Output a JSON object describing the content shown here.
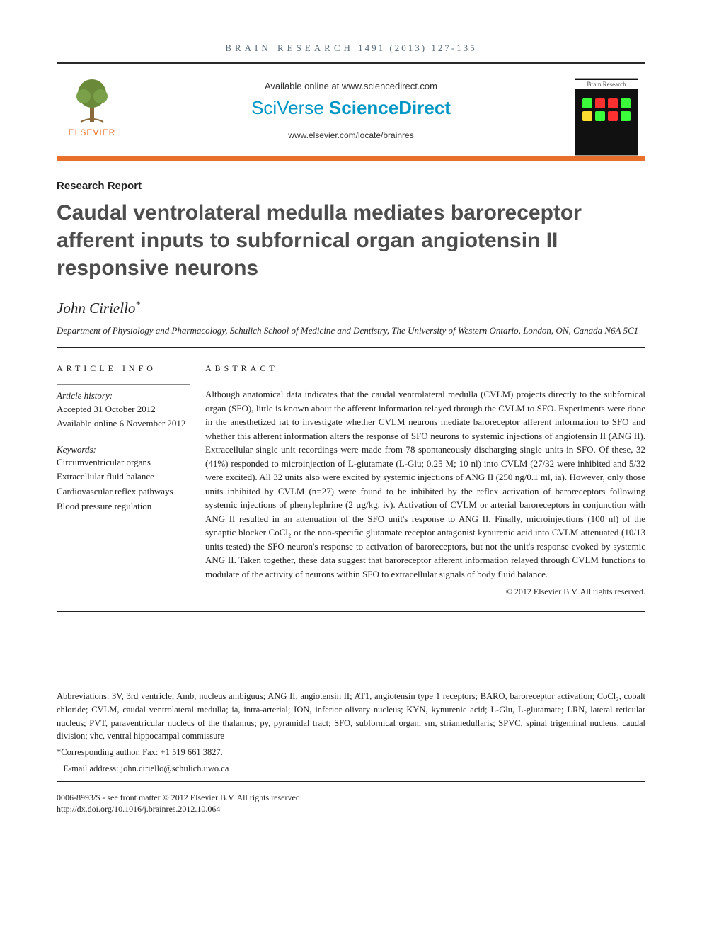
{
  "running_head": {
    "journal": "BRAIN RESEARCH",
    "issue": "1491 (2013) 127-135"
  },
  "banner": {
    "available_line": "Available online at www.sciencedirect.com",
    "brand_sv": "SciVerse ",
    "brand_sd": "ScienceDirect",
    "journal_link": "www.elsevier.com/locate/brainres",
    "elsevier_label": "ELSEVIER",
    "cover_head": "Brain Research",
    "brand_color": "#0097c4",
    "elsevier_color": "#e8702a",
    "cover_dot_colors": [
      "#3cff3c",
      "#ff3030",
      "#ff3030",
      "#3cff3c",
      "#ffdd30",
      "#3cff3c",
      "#ff3030",
      "#3cff3c"
    ]
  },
  "article_type": "Research Report",
  "title": "Caudal ventrolateral medulla mediates baroreceptor afferent inputs to subfornical organ angiotensin II responsive neurons",
  "author": "John Ciriello",
  "author_mark": "*",
  "affiliation": "Department of Physiology and Pharmacology, Schulich School of Medicine and Dentistry, The University of Western Ontario, London, ON, Canada N6A 5C1",
  "headings": {
    "info": "ARTICLE INFO",
    "abstract": "ABSTRACT"
  },
  "history": {
    "label": "Article history:",
    "accepted": "Accepted 31 October 2012",
    "online": "Available online 6 November 2012"
  },
  "keywords": {
    "label": "Keywords:",
    "items": [
      "Circumventricular organs",
      "Extracellular fluid balance",
      "Cardiovascular reflex pathways",
      "Blood pressure regulation"
    ]
  },
  "abstract": "Although anatomical data indicates that the caudal ventrolateral medulla (CVLM) projects directly to the subfornical organ (SFO), little is known about the afferent information relayed through the CVLM to SFO. Experiments were done in the anesthetized rat to investigate whether CVLM neurons mediate baroreceptor afferent information to SFO and whether this afferent information alters the response of SFO neurons to systemic injections of angiotensin II (ANG II). Extracellular single unit recordings were made from 78 spontaneously discharging single units in SFO. Of these, 32 (41%) responded to microinjection of L-glutamate (L-Glu; 0.25 M; 10 nl) into CVLM (27/32 were inhibited and 5/32 were excited). All 32 units also were excited by systemic injections of ANG II (250 ng/0.1 ml, ia). However, only those units inhibited by CVLM (n=27) were found to be inhibited by the reflex activation of baroreceptors following systemic injections of phenylephrine (2 µg/kg, iv). Activation of CVLM or arterial baroreceptors in conjunction with ANG II resulted in an attenuation of the SFO unit's response to ANG II. Finally, microinjections (100 nl) of the synaptic blocker CoCl₂ or the non-specific glutamate receptor antagonist kynurenic acid into CVLM attenuated (10/13 units tested) the SFO neuron's response to activation of baroreceptors, but not the unit's response evoked by systemic ANG II. Taken together, these data suggest that baroreceptor afferent information relayed through CVLM functions to modulate of the activity of neurons within SFO to extracellular signals of body fluid balance.",
  "copyright": "© 2012 Elsevier B.V. All rights reserved.",
  "abbrev": "Abbreviations: 3V, 3rd ventricle; Amb, nucleus ambiguus; ANG II, angiotensin II; AT1, angiotensin type 1 receptors; BARO, baroreceptor activation; CoCl₂, cobalt chloride; CVLM, caudal ventrolateral medulla; ia, intra-arterial; ION, inferior olivary nucleus; KYN, kynurenic acid; L-Glu, L-glutamate; LRN, lateral reticular nucleus; PVT, paraventricular nucleus of the thalamus; py, pyramidal tract; SFO, subfornical organ; sm, striamedullaris; SPVC, spinal trigeminal nucleus, caudal division; vhc, ventral hippocampal commissure",
  "corr_author": "*Corresponding author. Fax: +1 519 661 3827.",
  "email_label": "E-mail address: ",
  "email": "john.ciriello@schulich.uwo.ca",
  "legal_left": "0006-8993/$ - see front matter © 2012 Elsevier B.V. All rights reserved.",
  "doi": "http://dx.doi.org/10.1016/j.brainres.2012.10.064"
}
